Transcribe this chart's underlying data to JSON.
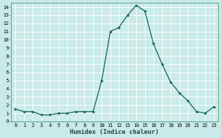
{
  "x": [
    0,
    1,
    2,
    3,
    4,
    5,
    6,
    7,
    8,
    9,
    10,
    11,
    12,
    13,
    14,
    15,
    16,
    17,
    18,
    19,
    20,
    21,
    22,
    23
  ],
  "y": [
    1.5,
    1.2,
    1.2,
    0.8,
    0.8,
    1.0,
    1.0,
    1.2,
    1.2,
    1.2,
    5.0,
    11.0,
    11.5,
    13.0,
    14.2,
    13.5,
    9.5,
    7.0,
    4.8,
    3.5,
    2.5,
    1.2,
    1.0,
    1.8
  ],
  "line_color": "#1a6b5a",
  "marker": "D",
  "marker_size": 1.8,
  "line_width": 1.0,
  "bg_color": "#c8eae8",
  "grid_major_color": "#ffffff",
  "grid_minor_color": "#ddf0ee",
  "xlabel": "Humidex (Indice chaleur)",
  "xlabel_fontsize": 6.5,
  "xlim": [
    -0.5,
    23.5
  ],
  "ylim": [
    0,
    14.5
  ],
  "yticks": [
    0,
    1,
    2,
    3,
    4,
    5,
    6,
    7,
    8,
    9,
    10,
    11,
    12,
    13,
    14
  ],
  "xticks": [
    0,
    1,
    2,
    3,
    4,
    5,
    6,
    7,
    8,
    9,
    10,
    11,
    12,
    13,
    14,
    15,
    16,
    17,
    18,
    19,
    20,
    21,
    22,
    23
  ],
  "tick_fontsize": 5.0,
  "spine_color": "#5a9a8a"
}
